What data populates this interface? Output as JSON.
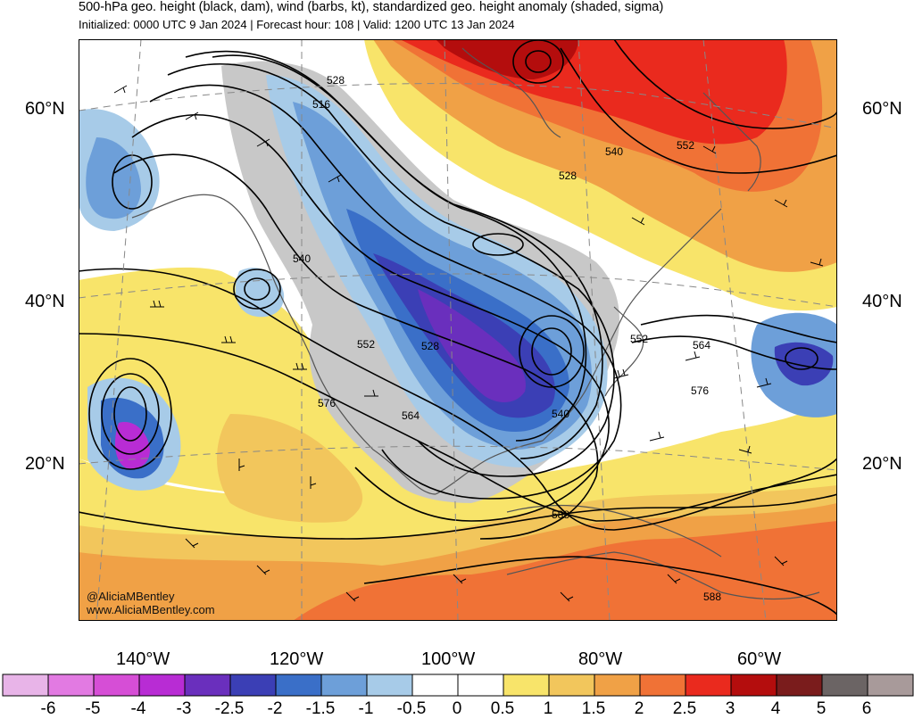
{
  "header": {
    "title": "500-hPa geo. height (black, dam), wind (barbs, kt), standardized geo. height anomaly (shaded, sigma)",
    "subtitle": "Initialized: 0000 UTC 9 Jan 2024 | Forecast hour: 108 | Valid: 1200 UTC 13 Jan 2024"
  },
  "axes": {
    "lat_labels": [
      "60°N",
      "40°N",
      "20°N"
    ],
    "lon_labels": [
      "140°W",
      "120°W",
      "100°W",
      "80°W",
      "60°W"
    ]
  },
  "contour_labels": [
    "528",
    "516",
    "540",
    "528",
    "552",
    "540",
    "552",
    "528",
    "576",
    "564",
    "540",
    "552",
    "564",
    "576",
    "588",
    "588"
  ],
  "colorbar": {
    "ticks": [
      "-6",
      "-5",
      "-4",
      "-3",
      "-2.5",
      "-2",
      "-1.5",
      "-1",
      "-0.5",
      "0",
      "0.5",
      "1",
      "1.5",
      "2",
      "2.5",
      "3",
      "4",
      "5",
      "6"
    ],
    "colors": [
      "#e8b4e8",
      "#e27ae2",
      "#d64ed6",
      "#b82cd4",
      "#6a2fbd",
      "#3b3fb5",
      "#3a6fc8",
      "#6d9fd9",
      "#a7cbe8",
      "#ffffff",
      "#ffffff",
      "#f8e46a",
      "#f2c65c",
      "#f0a146",
      "#f07236",
      "#ea2a1e",
      "#b40d0d",
      "#7a1c1c",
      "#6b6464",
      "#a89a9a"
    ]
  },
  "credits": {
    "handle": "@AliciaMBentley",
    "site": "www.AliciaMBentley.com"
  },
  "colors": {
    "height_contours": "#000000",
    "coastlines": "#555555",
    "land_mask_gray": "#c8c8c8"
  }
}
